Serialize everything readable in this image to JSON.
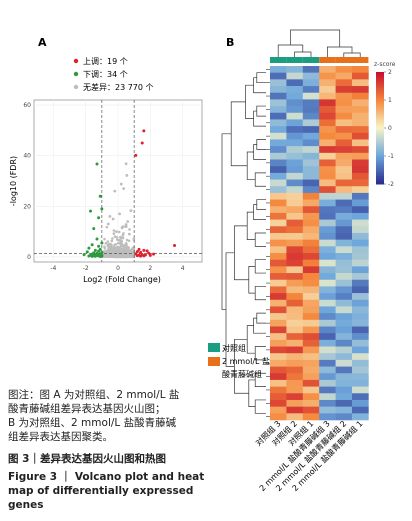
{
  "panels": {
    "a": "A",
    "b": "B"
  },
  "chart_data": [
    {
      "type": "scatter",
      "xlabel": "Log2 (Fold Change)",
      "ylabel": "-log10 (FDR)",
      "xlim": [
        -5.2,
        5.2
      ],
      "ylim": [
        -2,
        62
      ],
      "xticks": [
        -4,
        -2,
        0,
        2,
        4
      ],
      "yticks": [
        0,
        20,
        40,
        60
      ],
      "legend": [
        {
          "label": "上调：19 个",
          "color": "#e0202c"
        },
        {
          "label": "下调：34 个",
          "color": "#2e9a3e"
        },
        {
          "label": "无差异：23 770 个",
          "color": "#bdbdbd"
        }
      ],
      "series": {
        "up": [
          [
            1.6,
            49.8
          ],
          [
            1.5,
            45.0
          ],
          [
            1.1,
            40.1
          ],
          [
            3.5,
            4.5
          ],
          [
            1.3,
            3.0
          ],
          [
            1.6,
            2.6
          ],
          [
            1.8,
            2.4
          ],
          [
            1.2,
            2.1
          ],
          [
            1.4,
            1.8
          ],
          [
            1.9,
            1.5
          ],
          [
            1.1,
            1.2
          ],
          [
            2.2,
            1.1
          ],
          [
            1.5,
            0.9
          ],
          [
            1.7,
            0.8
          ],
          [
            1.3,
            0.7
          ],
          [
            2.0,
            0.6
          ],
          [
            1.2,
            0.5
          ],
          [
            1.6,
            0.4
          ],
          [
            1.4,
            0.3
          ]
        ],
        "down": [
          [
            -1.3,
            36.7
          ],
          [
            -1.1,
            24.0
          ],
          [
            -1.7,
            18.1
          ],
          [
            -1.0,
            19.0
          ],
          [
            -1.2,
            15.5
          ],
          [
            -1.5,
            11.2
          ],
          [
            -1.3,
            7.1
          ],
          [
            -1.0,
            5.5
          ],
          [
            -1.6,
            4.8
          ],
          [
            -1.2,
            4.2
          ],
          [
            -1.8,
            3.5
          ],
          [
            -1.1,
            3.0
          ],
          [
            -1.4,
            2.6
          ],
          [
            -1.2,
            2.3
          ],
          [
            -1.9,
            2.0
          ],
          [
            -1.0,
            1.8
          ],
          [
            -1.5,
            1.6
          ],
          [
            -1.3,
            1.4
          ],
          [
            -1.1,
            1.2
          ],
          [
            -1.6,
            1.1
          ],
          [
            -1.2,
            1.0
          ],
          [
            -2.1,
            0.9
          ],
          [
            -1.4,
            0.8
          ],
          [
            -1.0,
            0.7
          ],
          [
            -1.7,
            0.6
          ],
          [
            -1.3,
            0.55
          ],
          [
            -1.1,
            0.5
          ],
          [
            -1.5,
            0.45
          ],
          [
            -1.2,
            0.4
          ],
          [
            -1.8,
            0.35
          ],
          [
            -1.0,
            0.3
          ],
          [
            -1.4,
            0.25
          ],
          [
            -1.6,
            0.2
          ],
          [
            -1.1,
            0.15
          ]
        ],
        "ns_peaks": [
          [
            0.5,
            36.8
          ],
          [
            0.55,
            32.2
          ],
          [
            0.2,
            28.8
          ],
          [
            0.35,
            27.0
          ],
          [
            -0.2,
            26.0
          ],
          [
            0.8,
            18.3
          ],
          [
            0.1,
            17.0
          ],
          [
            -0.3,
            15.0
          ],
          [
            -0.6,
            13.0
          ],
          [
            0.5,
            12.8
          ],
          [
            -0.5,
            16.0
          ],
          [
            0.25,
            11.5
          ],
          [
            -0.1,
            10.0
          ],
          [
            0.7,
            9.0
          ],
          [
            0.6,
            14.0
          ]
        ]
      },
      "thresholds": {
        "x": [
          -1,
          1
        ],
        "y": 1.3
      }
    },
    {
      "type": "heatmap",
      "colorbar": {
        "label": "z-score",
        "ticks": [
          2,
          1,
          0,
          -1,
          -2
        ],
        "colors": [
          "#2b2f8f",
          "#6fa8dc",
          "#f7f4c8",
          "#f5883c",
          "#c8102e"
        ]
      },
      "groups": [
        {
          "label": "对照组",
          "color": "#1a9e82"
        },
        {
          "label": "2 mmol/L 盐酸青藤碱组",
          "color": "#e8701a"
        }
      ],
      "columns": [
        "对照组 3",
        "对照组 2",
        "对照组 1",
        "2 mmol/L 盐酸青藤碱组 3",
        "2 mmol/L 盐酸青藤碱组 2",
        "2 mmol/L 盐酸青藤碱组 1"
      ],
      "column_groups": [
        0,
        0,
        0,
        1,
        1,
        1
      ],
      "row_count": 53,
      "upper_block_rows": 19
    }
  ],
  "caption": {
    "note_lines": [
      "图注：图 A 为对照组、2 mmol/L 盐",
      "酸青藤碱组差异表达基因火山图；",
      "B 为对照组、2 mmol/L 盐酸青藤碱",
      "组差异表达基因聚类。"
    ],
    "title_cn": "图 3｜差异表达基因火山图和热图",
    "title_en_lines": [
      "Figure 3 ｜ Volcano plot and heat",
      "map of differentially expressed genes"
    ]
  }
}
